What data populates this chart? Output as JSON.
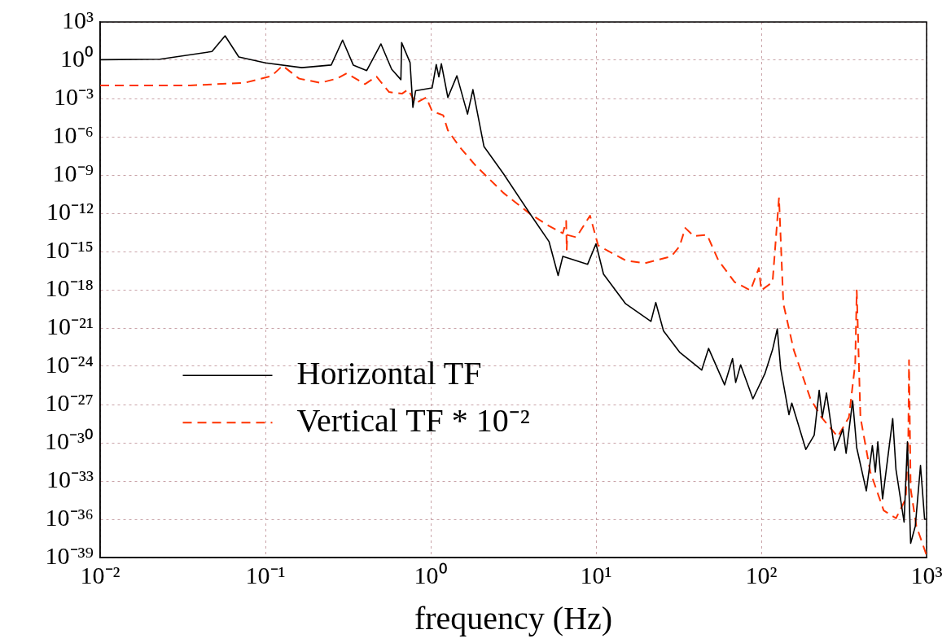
{
  "chart_data": {
    "type": "line",
    "xlabel": "frequency (Hz)",
    "log": "xy",
    "grid": true,
    "legend": "bottom left",
    "marker": "none",
    "xlim": [
      0.01,
      1000
    ],
    "ylim": [
      1e-39,
      1000
    ],
    "xticks": [
      {
        "value": 0.01,
        "label": "10⁻²"
      },
      {
        "value": 0.1,
        "label": "10⁻¹"
      },
      {
        "value": 1,
        "label": "10⁰"
      },
      {
        "value": 10,
        "label": "10¹"
      },
      {
        "value": 100,
        "label": "10²"
      },
      {
        "value": 1000,
        "label": "10³"
      }
    ],
    "yticks": [
      {
        "value": 1e-39,
        "label": "10⁻³⁹"
      },
      {
        "value": 1e-36,
        "label": "10⁻³⁶"
      },
      {
        "value": 1e-33,
        "label": "10⁻³³"
      },
      {
        "value": 1e-30,
        "label": "10⁻³⁰"
      },
      {
        "value": 1e-27,
        "label": "10⁻²⁷"
      },
      {
        "value": 1e-24,
        "label": "10⁻²⁴"
      },
      {
        "value": 1e-21,
        "label": "10⁻²¹"
      },
      {
        "value": 1e-18,
        "label": "10⁻¹⁸"
      },
      {
        "value": 1e-15,
        "label": "10⁻¹⁵"
      },
      {
        "value": 1e-12,
        "label": "10⁻¹²"
      },
      {
        "value": 1e-09,
        "label": "10⁻⁹"
      },
      {
        "value": 1e-06,
        "label": "10⁻⁶"
      },
      {
        "value": 0.001,
        "label": "10⁻³"
      },
      {
        "value": 1,
        "label": "10⁰"
      },
      {
        "value": 1000,
        "label": "10³"
      }
    ],
    "series": [
      {
        "name": "Horizontal TF",
        "color": "#000000",
        "line_style": "solid",
        "x": [
          0.01,
          0.023,
          0.0475,
          0.057,
          0.069,
          0.1,
          0.166,
          0.25,
          0.293,
          0.34,
          0.41,
          0.5,
          0.58,
          0.66,
          0.667,
          0.75,
          0.78,
          0.81,
          1.02,
          1.08,
          1.12,
          1.16,
          1.27,
          1.44,
          1.67,
          1.8,
          2.1,
          2.75,
          4,
          5.2,
          5.9,
          6.3,
          8.9,
          10,
          11.1,
          15.1,
          21.5,
          23,
          25.6,
          32,
          43.6,
          48,
          60,
          67,
          70,
          75,
          89,
          105,
          117,
          125,
          131,
          147,
          153,
          186,
          209,
          224,
          234,
          248,
          278,
          312,
          326,
          357,
          378,
          432,
          470,
          490,
          507,
          542,
          624,
          653,
          731,
          766,
          801,
          855,
          919,
          973,
          1000
        ],
        "values": [
          1.1,
          1.2,
          4.8,
          82,
          1.8,
          0.62,
          0.26,
          0.42,
          38,
          0.42,
          0.155,
          19,
          0.2,
          0.03,
          24,
          0.65,
          0.0002,
          0.004,
          0.0068,
          0.46,
          0.05,
          0.53,
          0.0012,
          0.06,
          6e-05,
          0.005,
          1.7e-07,
          1.3e-09,
          8.7e-13,
          5.9e-15,
          1.3e-17,
          4.2e-16,
          1e-16,
          4e-15,
          1.7e-17,
          8e-20,
          3.3e-21,
          1e-19,
          6e-22,
          1.3e-23,
          5e-25,
          2.5e-23,
          3.5e-26,
          4e-24,
          5.4e-26,
          1.3e-24,
          2.8e-27,
          2.5e-25,
          2e-23,
          8.7e-22,
          6.6e-25,
          1.6e-28,
          1.3e-27,
          3e-31,
          4e-30,
          1.3e-26,
          1e-28,
          8e-27,
          2.5e-31,
          1.2e-29,
          1.5e-31,
          2e-27,
          4e-31,
          1.7e-34,
          6e-31,
          5e-33,
          1.2e-30,
          4e-35,
          8e-29,
          8e-33,
          6e-37,
          1.2e-30,
          1.3e-38,
          3e-37,
          1.7e-32,
          1e-36,
          1e-36
        ]
      },
      {
        "name": "Vertical TF * 10⁻²",
        "color": "#ff3300",
        "line_style": "dashed",
        "x": [
          0.01,
          0.035,
          0.075,
          0.109,
          0.127,
          0.16,
          0.215,
          0.27,
          0.31,
          0.4,
          0.47,
          0.56,
          0.67,
          0.73,
          0.81,
          0.94,
          1.02,
          1.19,
          1.27,
          1.49,
          1.86,
          2.75,
          4,
          5.2,
          6.3,
          6.6,
          6.65,
          6.7,
          7.6,
          9.2,
          10.3,
          15.1,
          19.7,
          28.6,
          32,
          34.7,
          39,
          47,
          55,
          69,
          86,
          96.7,
          100,
          117,
          128,
          136,
          157,
          198,
          231,
          290,
          339,
          370,
          378,
          398,
          457,
          550,
          653,
          748,
          775,
          783,
          801,
          867,
          1000
        ],
        "values": [
          0.0105,
          0.0105,
          0.017,
          0.059,
          0.37,
          0.036,
          0.017,
          0.036,
          0.095,
          0.0135,
          0.052,
          0.0032,
          0.0024,
          0.005,
          0.00043,
          0.0012,
          0.0001,
          4.8e-05,
          3.2e-06,
          1.7e-07,
          5.9e-09,
          4e-11,
          8.7e-13,
          1e-13,
          2.7e-14,
          2.5e-13,
          1.4e-15,
          2e-14,
          1.3e-14,
          6.5e-13,
          3e-15,
          2e-16,
          1.2e-16,
          4.2e-16,
          2.5e-15,
          7e-14,
          1.6e-14,
          2e-14,
          2e-16,
          4e-18,
          9e-19,
          5e-17,
          9e-19,
          4e-18,
          1.7e-11,
          8e-20,
          2e-23,
          3e-27,
          1e-28,
          3e-30,
          1e-28,
          1.6e-24,
          9e-19,
          1e-28,
          5e-33,
          5e-36,
          1.2e-36,
          4e-35,
          2e-30,
          3e-24,
          2.5e-34,
          3e-37,
          1.5e-39
        ]
      }
    ]
  }
}
